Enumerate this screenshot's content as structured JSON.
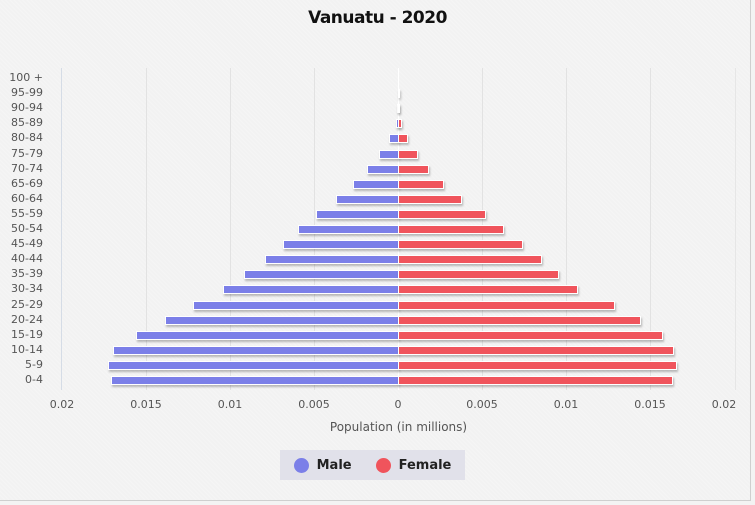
{
  "chart_data": {
    "type": "bar",
    "orientation": "horizontal-population-pyramid",
    "title": "Vanuatu - 2020",
    "xlabel": "Population (in millions)",
    "ylabel": "",
    "xlim": [
      -0.02,
      0.02
    ],
    "x_tick_labels": [
      "0.02",
      "0.015",
      "0.01",
      "0.005",
      "0",
      "0.005",
      "0.01",
      "0.015",
      "0.02"
    ],
    "x_tick_values": [
      -0.02,
      -0.015,
      -0.01,
      -0.005,
      0,
      0.005,
      0.01,
      0.015,
      0.02
    ],
    "grid": true,
    "legend_position": "bottom",
    "categories": [
      "100 +",
      "95-99",
      "90-94",
      "85-89",
      "80-84",
      "75-79",
      "70-74",
      "65-69",
      "60-64",
      "55-59",
      "50-54",
      "45-49",
      "40-44",
      "35-39",
      "30-34",
      "25-29",
      "20-24",
      "15-19",
      "10-14",
      "5-9",
      "0-4"
    ],
    "series": [
      {
        "name": "Male",
        "color": "#7b7fe8",
        "side": "left",
        "values": [
          0,
          0,
          3e-05,
          0.00012,
          0.00054,
          0.00113,
          0.00185,
          0.00268,
          0.00369,
          0.00488,
          0.00595,
          0.00685,
          0.00792,
          0.00917,
          0.01042,
          0.0122,
          0.01387,
          0.0156,
          0.01696,
          0.01726,
          0.01708
        ]
      },
      {
        "name": "Female",
        "color": "#f0545c",
        "side": "right",
        "values": [
          0,
          1e-05,
          5e-05,
          0.00018,
          0.00054,
          0.00113,
          0.00179,
          0.00268,
          0.00375,
          0.00518,
          0.00625,
          0.00738,
          0.00851,
          0.00952,
          0.01065,
          0.01286,
          0.0144,
          0.01571,
          0.01637,
          0.01655,
          0.01631
        ]
      }
    ]
  },
  "legend": {
    "items": [
      {
        "label": "Male",
        "color": "#7b7fe8"
      },
      {
        "label": "Female",
        "color": "#f0545c"
      }
    ]
  }
}
